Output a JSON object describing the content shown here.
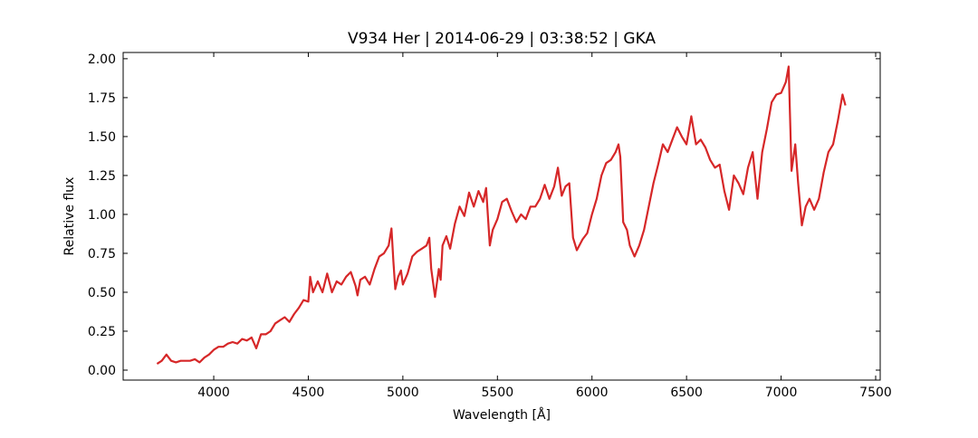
{
  "chart_data": {
    "type": "line",
    "title": "V934 Her | 2014-06-29 | 03:38:52 | GKA",
    "xlabel": "Wavelength [Å]",
    "ylabel": "Relative flux",
    "color": "#d62728",
    "x": [
      3700,
      3725,
      3750,
      3775,
      3800,
      3825,
      3850,
      3875,
      3900,
      3925,
      3950,
      3975,
      4000,
      4025,
      4050,
      4075,
      4100,
      4125,
      4150,
      4175,
      4200,
      4225,
      4250,
      4275,
      4300,
      4325,
      4350,
      4375,
      4400,
      4425,
      4450,
      4475,
      4500,
      4510,
      4525,
      4550,
      4575,
      4600,
      4625,
      4650,
      4675,
      4700,
      4725,
      4750,
      4760,
      4775,
      4800,
      4825,
      4850,
      4875,
      4900,
      4925,
      4940,
      4950,
      4960,
      4975,
      4990,
      5000,
      5025,
      5050,
      5075,
      5100,
      5125,
      5140,
      5150,
      5170,
      5190,
      5200,
      5210,
      5230,
      5250,
      5275,
      5300,
      5325,
      5350,
      5375,
      5400,
      5425,
      5440,
      5460,
      5475,
      5500,
      5525,
      5550,
      5575,
      5600,
      5625,
      5650,
      5675,
      5700,
      5725,
      5750,
      5775,
      5800,
      5820,
      5840,
      5860,
      5880,
      5900,
      5920,
      5950,
      5975,
      6000,
      6025,
      6050,
      6075,
      6100,
      6125,
      6140,
      6150,
      6165,
      6185,
      6200,
      6225,
      6250,
      6275,
      6300,
      6325,
      6350,
      6375,
      6400,
      6425,
      6450,
      6475,
      6500,
      6525,
      6550,
      6575,
      6600,
      6625,
      6650,
      6675,
      6700,
      6725,
      6750,
      6775,
      6800,
      6825,
      6850,
      6875,
      6900,
      6925,
      6950,
      6975,
      7000,
      7025,
      7040,
      7055,
      7075,
      7090,
      7110,
      7130,
      7150,
      7175,
      7200,
      7225,
      7250,
      7275,
      7300,
      7325,
      7340
    ],
    "values": [
      0.04,
      0.06,
      0.1,
      0.06,
      0.05,
      0.06,
      0.06,
      0.06,
      0.07,
      0.05,
      0.08,
      0.1,
      0.13,
      0.15,
      0.15,
      0.17,
      0.18,
      0.17,
      0.2,
      0.19,
      0.21,
      0.14,
      0.23,
      0.23,
      0.25,
      0.3,
      0.32,
      0.34,
      0.31,
      0.36,
      0.4,
      0.45,
      0.44,
      0.6,
      0.5,
      0.57,
      0.5,
      0.62,
      0.5,
      0.57,
      0.55,
      0.6,
      0.63,
      0.54,
      0.48,
      0.58,
      0.6,
      0.55,
      0.65,
      0.73,
      0.75,
      0.8,
      0.91,
      0.7,
      0.52,
      0.6,
      0.64,
      0.55,
      0.62,
      0.73,
      0.76,
      0.78,
      0.8,
      0.85,
      0.65,
      0.47,
      0.65,
      0.58,
      0.8,
      0.86,
      0.78,
      0.94,
      1.05,
      0.99,
      1.14,
      1.05,
      1.15,
      1.08,
      1.17,
      0.8,
      0.9,
      0.97,
      1.08,
      1.1,
      1.02,
      0.95,
      1.0,
      0.97,
      1.05,
      1.05,
      1.1,
      1.19,
      1.1,
      1.18,
      1.3,
      1.12,
      1.18,
      1.2,
      0.85,
      0.77,
      0.84,
      0.88,
      1.0,
      1.1,
      1.25,
      1.33,
      1.35,
      1.4,
      1.45,
      1.37,
      0.95,
      0.9,
      0.8,
      0.73,
      0.8,
      0.9,
      1.05,
      1.2,
      1.32,
      1.45,
      1.4,
      1.48,
      1.56,
      1.5,
      1.45,
      1.63,
      1.45,
      1.48,
      1.43,
      1.35,
      1.3,
      1.32,
      1.15,
      1.03,
      1.25,
      1.2,
      1.13,
      1.3,
      1.4,
      1.1,
      1.4,
      1.55,
      1.72,
      1.77,
      1.78,
      1.85,
      1.95,
      1.28,
      1.45,
      1.2,
      0.93,
      1.05,
      1.1,
      1.03,
      1.1,
      1.27,
      1.4,
      1.45,
      1.6,
      1.77,
      1.7
    ],
    "xlim": [
      3521,
      7524
    ],
    "ylim": [
      -0.064,
      2.04
    ],
    "xticks": [
      4000,
      4500,
      5000,
      5500,
      6000,
      6500,
      7000,
      7500
    ],
    "yticks": [
      {
        "value": 0,
        "label": "0.00"
      },
      {
        "value": 0.25,
        "label": "0.25"
      },
      {
        "value": 0.5,
        "label": "0.50"
      },
      {
        "value": 0.75,
        "label": "0.75"
      },
      {
        "value": 1,
        "label": "1.00"
      },
      {
        "value": 1.25,
        "label": "1.25"
      },
      {
        "value": 1.5,
        "label": "1.50"
      },
      {
        "value": 1.75,
        "label": "1.75"
      },
      {
        "value": 2,
        "label": "2.00"
      }
    ]
  }
}
